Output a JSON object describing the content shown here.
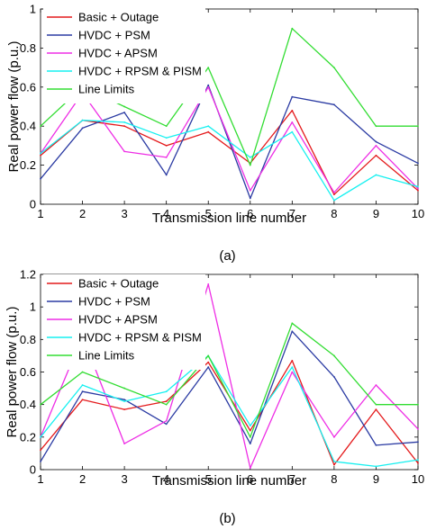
{
  "chart_data": [
    {
      "type": "line",
      "panel_label": "(a)",
      "xlabel": "Transmission line number",
      "ylabel": "Real power flow (p.u.)",
      "xlim": [
        1,
        10
      ],
      "ylim": [
        0,
        1
      ],
      "x_ticks": [
        "1",
        "2",
        "3",
        "4",
        "5",
        "6",
        "7",
        "8",
        "9",
        "10"
      ],
      "y_ticks": [
        "0",
        "0.2",
        "0.4",
        "0.6",
        "0.8",
        "1"
      ],
      "grid": false,
      "legend_position": "top-left",
      "x": [
        1,
        2,
        3,
        4,
        5,
        6,
        7,
        8,
        9,
        10
      ],
      "series": [
        {
          "name": "Basic + Outage",
          "color": "#e41a1c",
          "values": [
            0.25,
            0.43,
            0.4,
            0.3,
            0.37,
            0.21,
            0.48,
            0.05,
            0.25,
            0.07
          ]
        },
        {
          "name": "HVDC + PSM",
          "color": "#2b3ba3",
          "values": [
            0.13,
            0.39,
            0.47,
            0.15,
            0.61,
            0.03,
            0.55,
            0.51,
            0.32,
            0.21
          ]
        },
        {
          "name": "HVDC + APSM",
          "color": "#ee2ee5",
          "values": [
            0.26,
            0.57,
            0.27,
            0.24,
            0.6,
            0.07,
            0.42,
            0.06,
            0.3,
            0.08
          ]
        },
        {
          "name": "HVDC + RPSM & PISM",
          "color": "#16f0f0",
          "values": [
            0.26,
            0.43,
            0.42,
            0.34,
            0.4,
            0.24,
            0.37,
            0.02,
            0.15,
            0.09
          ]
        },
        {
          "name": "Line Limits",
          "color": "#33dd33",
          "values": [
            0.4,
            0.6,
            0.5,
            0.4,
            0.7,
            0.2,
            0.9,
            0.7,
            0.4,
            0.4
          ]
        }
      ]
    },
    {
      "type": "line",
      "panel_label": "(b)",
      "xlabel": "Transmission line number",
      "ylabel": "Real power flow (p.u.)",
      "xlim": [
        1,
        10
      ],
      "ylim": [
        0,
        1.2
      ],
      "x_ticks": [
        "1",
        "2",
        "3",
        "4",
        "5",
        "6",
        "7",
        "8",
        "9",
        "10"
      ],
      "y_ticks": [
        "0",
        "0.2",
        "0.4",
        "0.6",
        "0.8",
        "1",
        "1.2"
      ],
      "grid": false,
      "legend_position": "top-left",
      "x": [
        1,
        2,
        3,
        4,
        5,
        6,
        7,
        8,
        9,
        10
      ],
      "series": [
        {
          "name": "Basic + Outage",
          "color": "#e41a1c",
          "values": [
            0.12,
            0.43,
            0.37,
            0.42,
            0.66,
            0.24,
            0.67,
            0.03,
            0.37,
            0.04
          ]
        },
        {
          "name": "HVDC + PSM",
          "color": "#2b3ba3",
          "values": [
            0.05,
            0.48,
            0.43,
            0.28,
            0.63,
            0.16,
            0.85,
            0.57,
            0.15,
            0.17
          ]
        },
        {
          "name": "HVDC + APSM",
          "color": "#ee2ee5",
          "values": [
            0.2,
            0.82,
            0.16,
            0.3,
            1.14,
            0.01,
            0.6,
            0.2,
            0.52,
            0.25
          ]
        },
        {
          "name": "HVDC + RPSM & PISM",
          "color": "#16f0f0",
          "values": [
            0.2,
            0.52,
            0.42,
            0.48,
            0.7,
            0.27,
            0.63,
            0.05,
            0.02,
            0.06
          ]
        },
        {
          "name": "Line Limits",
          "color": "#33dd33",
          "values": [
            0.4,
            0.6,
            0.5,
            0.4,
            0.7,
            0.2,
            0.9,
            0.7,
            0.4,
            0.4
          ]
        }
      ]
    }
  ]
}
